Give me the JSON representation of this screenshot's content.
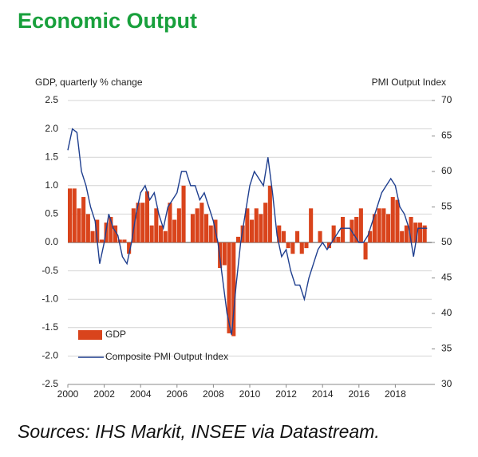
{
  "chart_data": {
    "type": "bar",
    "title": "Economic Output",
    "y_label": "GDP, quarterly % change",
    "y2_label": "PMI Output  Index",
    "source": "Sources: IHS Markit, INSEE via Datastream.",
    "xlim": [
      2000,
      2020
    ],
    "xticks": [
      2000,
      2002,
      2004,
      2006,
      2008,
      2010,
      2012,
      2014,
      2016,
      2018
    ],
    "ylim": [
      -2.5,
      2.5
    ],
    "yticks": [
      2.5,
      {
        "value": 2,
        "label": "2.0"
      },
      1.5,
      {
        "value": 1,
        "label": "1.0"
      },
      0.5,
      {
        "value": 0,
        "label": "0.0"
      },
      -0.5,
      {
        "value": -1,
        "label": "-1.0"
      },
      -1.5,
      {
        "value": -2,
        "label": "-2.0"
      },
      -2.5
    ],
    "y2lim": [
      30,
      70
    ],
    "y2ticks": [
      30,
      35,
      40,
      45,
      50,
      55,
      60,
      65,
      70
    ],
    "grid": true,
    "legend": "lower left",
    "series": [
      {
        "name": "GDP",
        "type": "bar",
        "color": "#d9441c",
        "x": [
          2000,
          2000.25,
          2000.5,
          2000.75,
          2001,
          2001.25,
          2001.5,
          2001.75,
          2002,
          2002.25,
          2002.5,
          2002.75,
          2003,
          2003.25,
          2003.5,
          2003.75,
          2004,
          2004.25,
          2004.5,
          2004.75,
          2005,
          2005.25,
          2005.5,
          2005.75,
          2006,
          2006.25,
          2006.5,
          2006.75,
          2007,
          2007.25,
          2007.5,
          2007.75,
          2008,
          2008.25,
          2008.5,
          2008.75,
          2009,
          2009.25,
          2009.5,
          2009.75,
          2010,
          2010.25,
          2010.5,
          2010.75,
          2011,
          2011.25,
          2011.5,
          2011.75,
          2012,
          2012.25,
          2012.5,
          2012.75,
          2013,
          2013.25,
          2013.5,
          2013.75,
          2014,
          2014.25,
          2014.5,
          2014.75,
          2015,
          2015.25,
          2015.5,
          2015.75,
          2016,
          2016.25,
          2016.5,
          2016.75,
          2017,
          2017.25,
          2017.5,
          2017.75,
          2018,
          2018.25,
          2018.5,
          2018.75,
          2019,
          2019.25,
          2019.5
        ],
        "values": [
          0.95,
          0.95,
          0.6,
          0.8,
          0.5,
          0.2,
          0.4,
          0.05,
          0.35,
          0.45,
          0.3,
          0.05,
          0.05,
          -0.2,
          0.6,
          0.7,
          0.7,
          0.9,
          0.3,
          0.6,
          0.3,
          0.2,
          0.7,
          0.4,
          0.6,
          1.0,
          0.0,
          0.5,
          0.6,
          0.7,
          0.5,
          0.3,
          0.4,
          -0.45,
          -0.4,
          -1.6,
          -1.65,
          0.1,
          0.3,
          0.6,
          0.4,
          0.6,
          0.5,
          0.7,
          1.0,
          0.0,
          0.3,
          0.2,
          -0.1,
          -0.2,
          0.2,
          -0.2,
          -0.1,
          0.6,
          0.0,
          0.2,
          0.0,
          -0.1,
          0.3,
          0.1,
          0.45,
          0.0,
          0.4,
          0.45,
          0.6,
          -0.3,
          0.2,
          0.5,
          0.6,
          0.6,
          0.5,
          0.8,
          0.75,
          0.2,
          0.3,
          0.45,
          0.35,
          0.35,
          0.3
        ]
      },
      {
        "name": "Composite PMI Output Index",
        "type": "line",
        "axis": "y2",
        "color": "#1f3f8f",
        "x": [
          2000,
          2000.25,
          2000.5,
          2000.75,
          2001,
          2001.25,
          2001.5,
          2001.75,
          2002,
          2002.25,
          2002.5,
          2002.75,
          2003,
          2003.25,
          2003.5,
          2003.75,
          2004,
          2004.25,
          2004.5,
          2004.75,
          2005,
          2005.25,
          2005.5,
          2005.75,
          2006,
          2006.25,
          2006.5,
          2006.75,
          2007,
          2007.25,
          2007.5,
          2007.75,
          2008,
          2008.25,
          2008.5,
          2008.75,
          2009,
          2009.25,
          2009.5,
          2009.75,
          2010,
          2010.25,
          2010.5,
          2010.75,
          2011,
          2011.25,
          2011.5,
          2011.75,
          2012,
          2012.25,
          2012.5,
          2012.75,
          2013,
          2013.25,
          2013.5,
          2013.75,
          2014,
          2014.25,
          2014.5,
          2014.75,
          2015,
          2015.25,
          2015.5,
          2015.75,
          2016,
          2016.25,
          2016.5,
          2016.75,
          2017,
          2017.25,
          2017.5,
          2017.75,
          2018,
          2018.25,
          2018.5,
          2018.75,
          2019,
          2019.25,
          2019.5,
          2019.75
        ],
        "values": [
          63,
          66,
          65.5,
          60,
          58,
          55,
          53,
          47,
          50,
          54,
          52,
          51,
          48,
          47,
          50,
          54,
          57,
          58,
          56,
          57,
          54,
          52,
          55,
          56,
          57,
          60,
          60,
          58,
          58,
          56,
          57,
          55,
          53,
          50,
          45,
          40,
          37,
          44,
          50,
          54,
          58,
          60,
          59,
          58,
          62,
          57,
          51,
          48,
          49,
          46,
          44,
          44,
          42,
          45,
          47,
          49,
          50,
          49,
          50,
          51,
          52,
          52,
          52,
          51,
          50,
          50,
          51,
          53,
          55,
          57,
          58,
          59,
          58,
          55,
          54,
          52,
          48,
          52,
          52,
          52
        ]
      }
    ]
  }
}
